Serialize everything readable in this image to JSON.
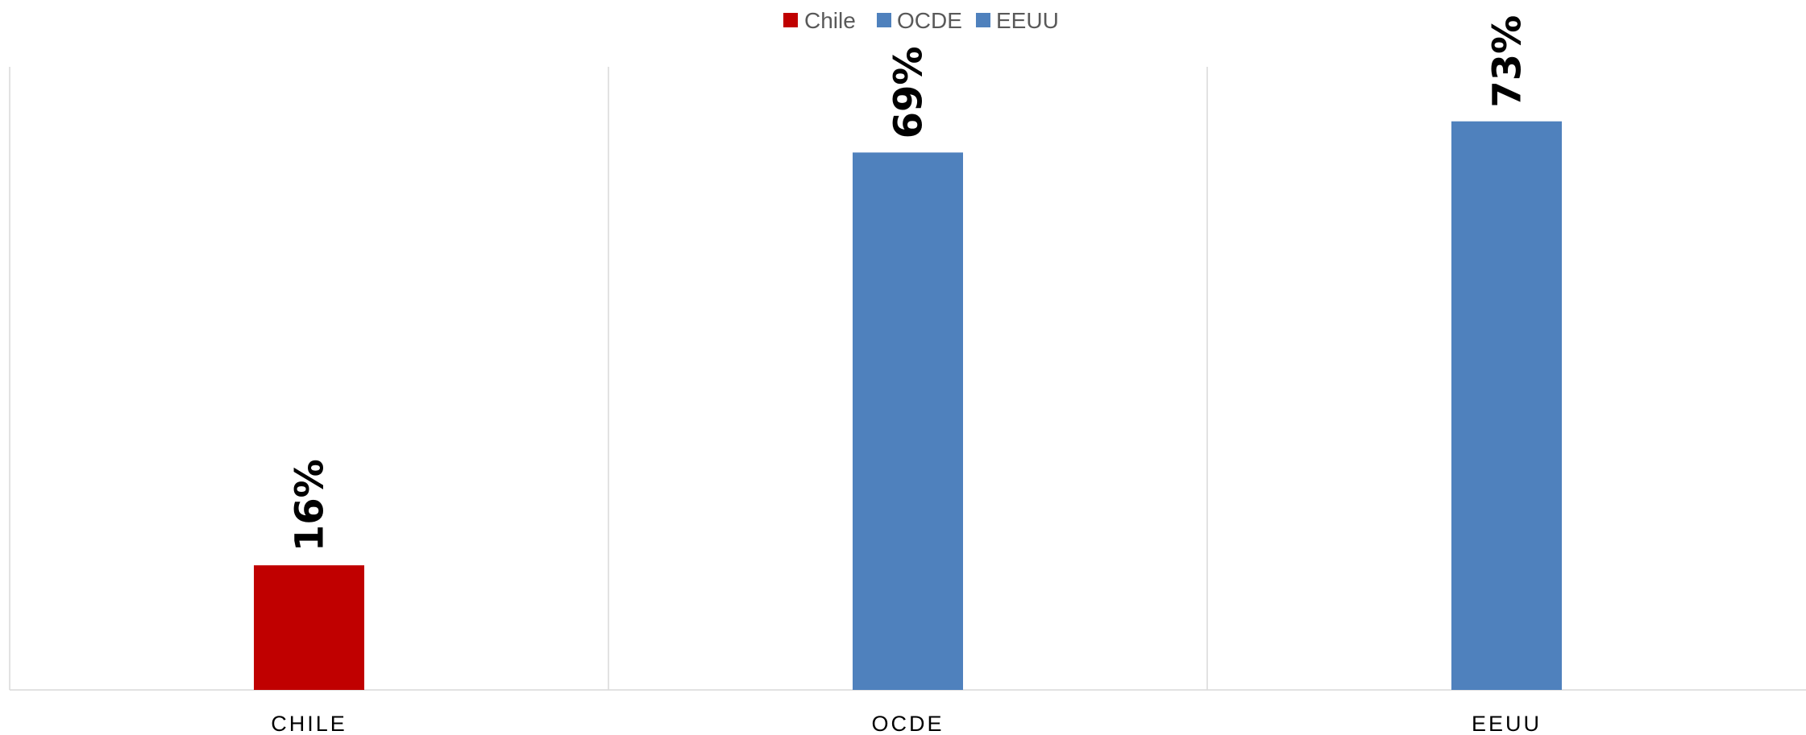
{
  "chart_data": {
    "type": "bar",
    "categories": [
      "CHILE",
      "OCDE",
      "EEUU"
    ],
    "series": [
      {
        "name": "Chile",
        "color": "#C00000",
        "values": [
          16,
          null,
          null
        ]
      },
      {
        "name": "OCDE",
        "color": "#4F81BD",
        "values": [
          null,
          69,
          null
        ]
      },
      {
        "name": "EEUU",
        "color": "#4F81BD",
        "values": [
          null,
          null,
          73
        ]
      }
    ],
    "data_labels": [
      "16%",
      "69%",
      "73%"
    ],
    "data_label_rotation": "vertical",
    "ylim": [
      0,
      80
    ],
    "grid": {
      "vertical_category_separators": true,
      "horizontal": false
    },
    "legend": {
      "position": "top-center"
    },
    "title": "",
    "xlabel": "",
    "ylabel": ""
  }
}
